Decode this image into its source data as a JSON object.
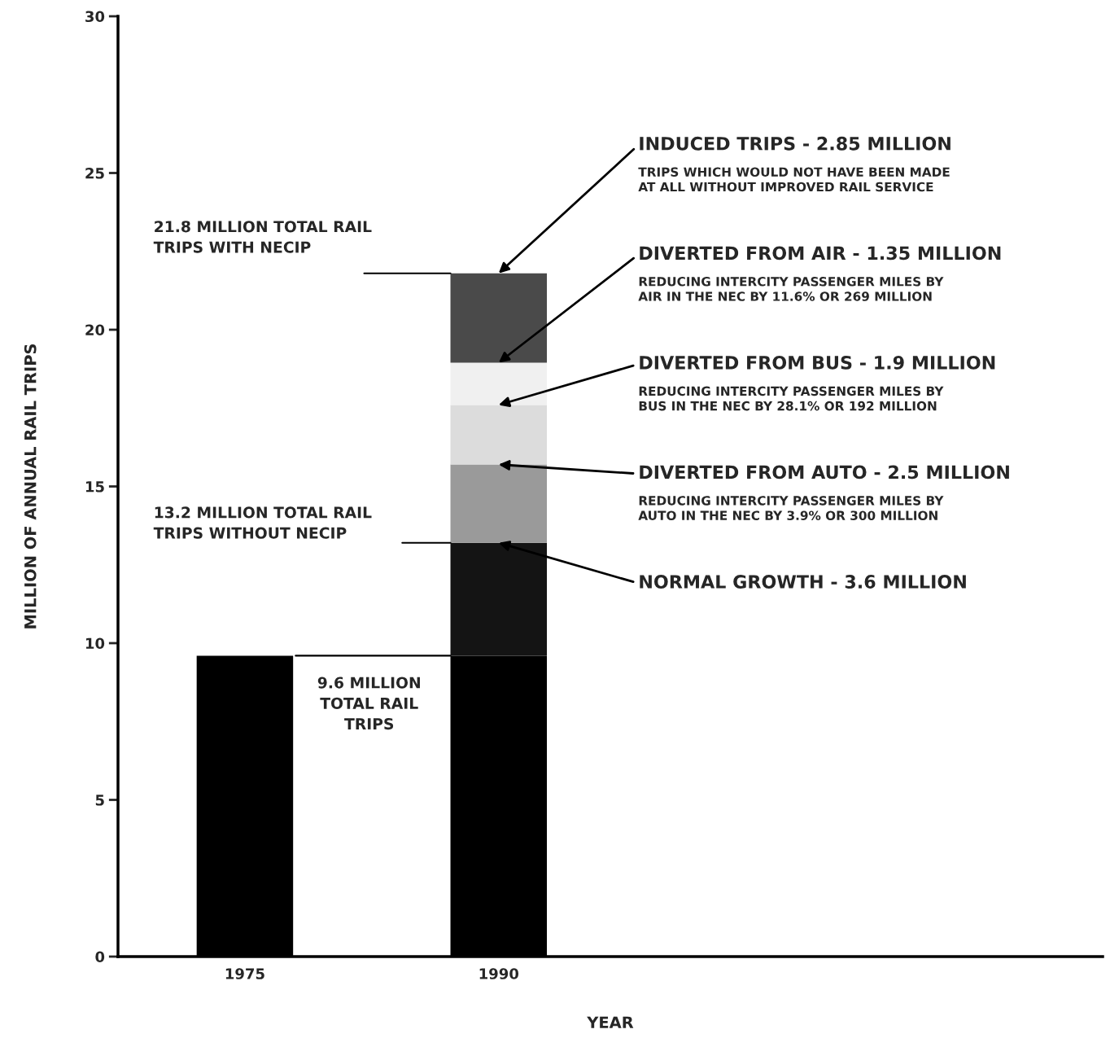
{
  "chart_data": {
    "type": "bar",
    "stacked": true,
    "xlabel": "YEAR",
    "ylabel": "MILLION OF ANNUAL RAIL TRIPS",
    "categories": [
      "1975",
      "1990"
    ],
    "series": [
      {
        "color": "#000000",
        "values": [
          9.6,
          9.6
        ]
      },
      {
        "color": "#141414",
        "values": [
          null,
          3.6
        ]
      },
      {
        "color": "#9a9a9a",
        "values": [
          null,
          2.5
        ]
      },
      {
        "color": "#dcdcdc",
        "values": [
          null,
          1.9
        ]
      },
      {
        "color": "#f0f0f0",
        "values": [
          null,
          1.35
        ]
      },
      {
        "color": "#4a4a4a",
        "values": [
          null,
          2.85
        ]
      }
    ],
    "ylim": [
      0,
      30
    ],
    "yticks": [
      0,
      5,
      10,
      15,
      20,
      25,
      30
    ],
    "grid": false,
    "legend": false,
    "annotations": [
      {
        "text": "INDUCED TRIPS - 2.85 MILLION",
        "x": "1990",
        "y": 21.8
      },
      "TRIPS WHICH WOULD NOT HAVE BEEN MADE\nAT ALL WITHOUT IMPROVED RAIL SERVICE",
      {
        "text": "DIVERTED FROM AIR - 1.35 MILLION",
        "x": "1990",
        "y": 18.95
      },
      "REDUCING INTERCITY PASSENGER MILES BY\nAIR IN THE NEC BY 11.6% OR 269 MILLION",
      {
        "text": "DIVERTED FROM BUS - 1.9 MILLION",
        "x": "1990",
        "y": 17.6
      },
      "REDUCING INTERCITY PASSENGER MILES BY\nBUS IN THE NEC BY 28.1% OR 192 MILLION",
      {
        "text": "DIVERTED FROM AUTO - 2.5 MILLION",
        "x": "1990",
        "y": 15.7
      },
      "REDUCING INTERCITY PASSENGER MILES BY\nAUTO IN THE NEC BY 3.9% OR 300 MILLION",
      {
        "text": "NORMAL GROWTH - 3.6 MILLION",
        "x": "1990",
        "y": 13.2
      }
    ],
    "ref_lines": [
      {
        "axis": "y",
        "value": 21.8,
        "label": "21.8 MILLION TOTAL RAIL\nTRIPS WITH NECIP"
      },
      {
        "axis": "y",
        "value": 13.2,
        "label": "13.2 MILLION TOTAL RAIL\nTRIPS WITHOUT NECIP"
      },
      {
        "axis": "y",
        "value": 9.6,
        "label": "9.6 MILLION\nTOTAL RAIL\nTRIPS"
      }
    ]
  }
}
